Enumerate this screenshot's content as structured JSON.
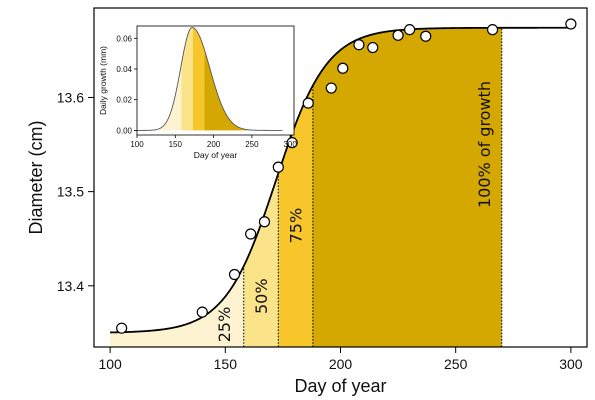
{
  "chart_data": [
    {
      "type": "line",
      "title": "",
      "xlabel": "Day of year",
      "ylabel": "Diameter (cm)",
      "xlim": [
        93,
        307
      ],
      "ylim": [
        13.335,
        13.695
      ],
      "xticks": [
        100,
        150,
        200,
        250,
        300
      ],
      "yticks": [
        13.4,
        13.5,
        13.6
      ],
      "grid": false,
      "legend": "none",
      "points": [
        {
          "x": 105,
          "y": 13.355
        },
        {
          "x": 140,
          "y": 13.372
        },
        {
          "x": 154,
          "y": 13.412
        },
        {
          "x": 161,
          "y": 13.455
        },
        {
          "x": 167,
          "y": 13.468
        },
        {
          "x": 173,
          "y": 13.526
        },
        {
          "x": 179,
          "y": 13.552
        },
        {
          "x": 186,
          "y": 13.594
        },
        {
          "x": 196,
          "y": 13.61
        },
        {
          "x": 201,
          "y": 13.631
        },
        {
          "x": 208,
          "y": 13.656
        },
        {
          "x": 214,
          "y": 13.653
        },
        {
          "x": 225,
          "y": 13.666
        },
        {
          "x": 230,
          "y": 13.672
        },
        {
          "x": 237,
          "y": 13.665
        },
        {
          "x": 266,
          "y": 13.672
        },
        {
          "x": 300,
          "y": 13.678
        }
      ],
      "fit": {
        "min": 13.35,
        "max": 13.674,
        "center": 172,
        "width": 11.0
      },
      "bands": [
        {
          "label": "25%",
          "from": 100,
          "to": 158,
          "color": "#fdf3d0"
        },
        {
          "label": "50%",
          "from": 158,
          "to": 173,
          "color": "#fbe38a"
        },
        {
          "label": "75%",
          "from": 173,
          "to": 188,
          "color": "#f6c62a"
        },
        {
          "label": "100% of growth",
          "from": 188,
          "to": 270,
          "color": "#d4a800"
        }
      ]
    },
    {
      "type": "area",
      "title": "",
      "xlabel": "Day of year",
      "ylabel": "Daily growth (mm)",
      "xlim": [
        100,
        305
      ],
      "ylim": [
        -0.003,
        0.068
      ],
      "xticks": [
        100,
        150,
        200,
        250,
        300
      ],
      "yticks": [
        0.0,
        0.02,
        0.04,
        0.06
      ],
      "ytick_labels": [
        "0.00",
        "0.02",
        "0.04",
        "0.06"
      ],
      "grid": false,
      "legend": "none",
      "curve": {
        "peak": 0.067,
        "mode": 172,
        "left_width": 15,
        "right_width": 23
      },
      "bands": [
        {
          "from": 100,
          "to": 158,
          "color": "#fdf3d0"
        },
        {
          "from": 158,
          "to": 173,
          "color": "#fbe38a"
        },
        {
          "from": 173,
          "to": 188,
          "color": "#f6c62a"
        },
        {
          "from": 188,
          "to": 290,
          "color": "#d4a800"
        }
      ]
    }
  ]
}
